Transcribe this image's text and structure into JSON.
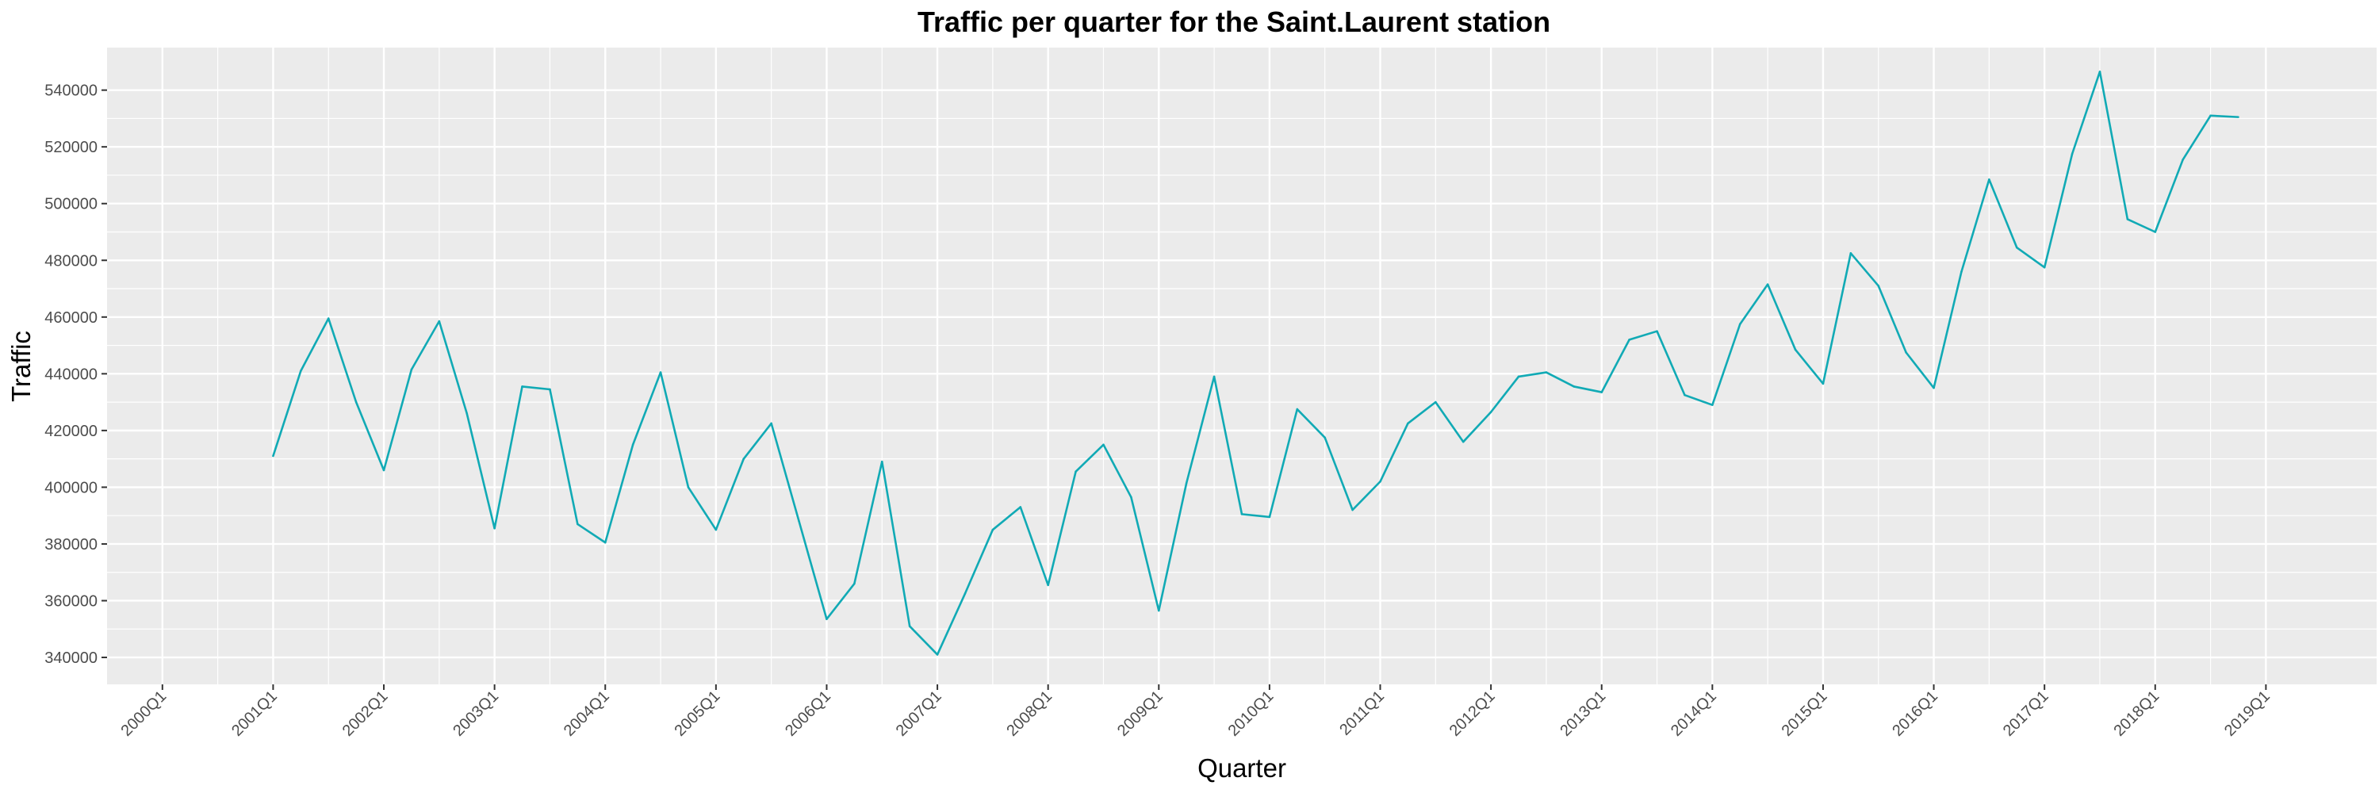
{
  "chart_data": {
    "type": "line",
    "title": "Traffic per quarter for the Saint.Laurent station",
    "xlabel": "Quarter",
    "ylabel": "Traffic",
    "x_tick_labels": [
      "2000Q1",
      "2001Q1",
      "2002Q1",
      "2003Q1",
      "2004Q1",
      "2005Q1",
      "2006Q1",
      "2007Q1",
      "2008Q1",
      "2009Q1",
      "2010Q1",
      "2011Q1",
      "2012Q1",
      "2013Q1",
      "2014Q1",
      "2015Q1",
      "2016Q1",
      "2017Q1",
      "2018Q1",
      "2019Q1"
    ],
    "y_ticks": [
      340000,
      360000,
      380000,
      400000,
      420000,
      440000,
      460000,
      480000,
      500000,
      520000,
      540000
    ],
    "y_tick_labels": [
      "340000",
      "360000",
      "380000",
      "400000",
      "420000",
      "440000",
      "460000",
      "480000",
      "500000",
      "520000",
      "540000"
    ],
    "xlim": [
      "2000Q1",
      "2019Q3"
    ],
    "ylim": [
      330500,
      555000
    ],
    "grid": true,
    "colors": {
      "line": "#11aab5",
      "panel": "#ebebeb",
      "grid": "#ffffff"
    },
    "series": [
      {
        "x": [
          "2001Q1",
          "2001Q2",
          "2001Q3",
          "2001Q4",
          "2002Q1",
          "2002Q2",
          "2002Q3",
          "2002Q4",
          "2003Q1",
          "2003Q2",
          "2003Q3",
          "2003Q4",
          "2004Q1",
          "2004Q2",
          "2004Q3",
          "2004Q4",
          "2005Q1",
          "2005Q2",
          "2005Q3",
          "2005Q4",
          "2006Q1",
          "2006Q2",
          "2006Q3",
          "2006Q4",
          "2007Q1",
          "2007Q2",
          "2007Q3",
          "2007Q4",
          "2008Q1",
          "2008Q2",
          "2008Q3",
          "2008Q4",
          "2009Q1",
          "2009Q2",
          "2009Q3",
          "2009Q4",
          "2010Q1",
          "2010Q2",
          "2010Q3",
          "2010Q4",
          "2011Q1",
          "2011Q2",
          "2011Q3",
          "2011Q4",
          "2012Q1",
          "2012Q2",
          "2012Q3",
          "2012Q4",
          "2013Q1",
          "2013Q2",
          "2013Q3",
          "2013Q4",
          "2014Q1",
          "2014Q2",
          "2014Q3",
          "2014Q4",
          "2015Q1",
          "2015Q2",
          "2015Q3",
          "2015Q4",
          "2016Q1",
          "2016Q2",
          "2016Q3",
          "2016Q4",
          "2017Q1",
          "2017Q2",
          "2017Q3",
          "2017Q4",
          "2018Q1",
          "2018Q2",
          "2018Q3",
          "2018Q4"
        ],
        "y": [
          411000,
          441000,
          459500,
          430000,
          406000,
          441500,
          458500,
          426000,
          385500,
          435500,
          434500,
          387000,
          380500,
          415000,
          440500,
          400000,
          385000,
          410000,
          422500,
          388000,
          353500,
          366000,
          409000,
          351000,
          341000,
          362500,
          385000,
          393000,
          365500,
          405500,
          415000,
          396500,
          356500,
          401500,
          439000,
          390500,
          389500,
          427500,
          417500,
          392000,
          402000,
          422500,
          430000,
          416000,
          426500,
          439000,
          440500,
          435500,
          433500,
          452000,
          455000,
          432500,
          429000,
          457500,
          471500,
          448500,
          436500,
          482500,
          471000,
          447500,
          435000,
          476000,
          508500,
          484500,
          477500,
          517500,
          546500,
          494500,
          490000,
          515500,
          531000,
          530500
        ]
      }
    ]
  }
}
